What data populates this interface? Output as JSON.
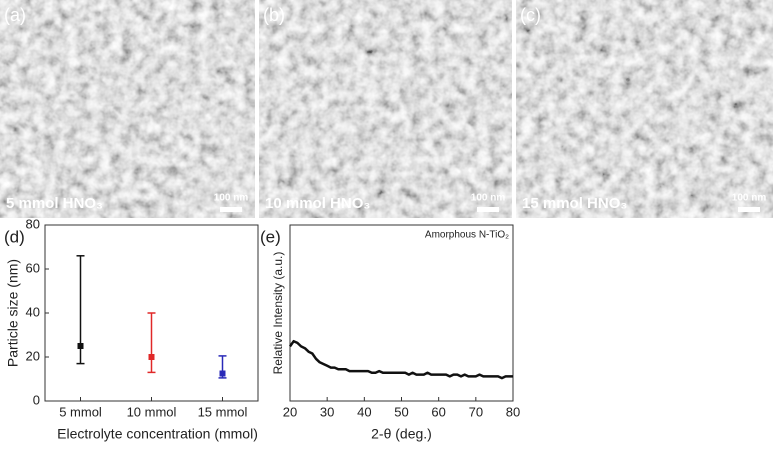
{
  "panels": [
    {
      "label": "(a)",
      "caption": "5 mmol HNO₃",
      "scale": "100 nm"
    },
    {
      "label": "(b)",
      "caption": "10 mmol HNO₃",
      "scale": "100 nm"
    },
    {
      "label": "(c)",
      "caption": "15 mmol HNO₃",
      "scale": "100 nm"
    }
  ],
  "chart_data": [
    {
      "type": "errorbar",
      "label": "(d)",
      "x_label": "Electrolyte concentration (mmol)",
      "y_label": "Particle size (nm)",
      "categories": [
        "5 mmol",
        "10 mmol",
        "15 mmol"
      ],
      "values": [
        25,
        20,
        12.5
      ],
      "min": [
        17,
        13,
        10.5
      ],
      "max": [
        66,
        40,
        20.5
      ],
      "colors": [
        "#111111",
        "#e02828",
        "#2a2ab8"
      ],
      "ylim": [
        0,
        80
      ],
      "yticks": [
        0,
        20,
        40,
        60,
        80
      ]
    },
    {
      "type": "line",
      "label": "(e)",
      "x_label": "2-θ (deg.)",
      "y_label": "Relative Intensity (a.u.)",
      "annotation": "Amorphous N-TiO₂",
      "color": "#111111",
      "xlim": [
        20,
        80
      ],
      "xticks": [
        20,
        30,
        40,
        50,
        60,
        70,
        80
      ],
      "ylim": [
        0,
        100
      ],
      "x": [
        20,
        21,
        22,
        23,
        24,
        25,
        26,
        27,
        28,
        29,
        30,
        31,
        32,
        33,
        34,
        35,
        36,
        37,
        38,
        39,
        40,
        41,
        42,
        43,
        44,
        45,
        46,
        47,
        48,
        49,
        50,
        51,
        52,
        53,
        54,
        55,
        56,
        57,
        58,
        59,
        60,
        61,
        62,
        63,
        64,
        65,
        66,
        67,
        68,
        69,
        70,
        71,
        72,
        73,
        74,
        75,
        76,
        77,
        78,
        79,
        80
      ],
      "values": [
        31,
        34,
        33,
        31,
        30,
        28,
        27,
        24,
        22,
        21,
        20,
        19,
        19,
        18,
        18,
        18,
        17,
        17,
        17,
        17,
        17,
        17,
        16,
        16,
        17,
        16,
        16,
        16,
        16,
        16,
        16,
        16,
        15,
        16,
        15,
        15,
        15,
        16,
        15,
        15,
        15,
        15,
        15,
        14,
        15,
        15,
        14,
        15,
        14,
        14,
        14,
        15,
        14,
        14,
        14,
        14,
        14,
        13,
        14,
        14,
        14
      ]
    }
  ]
}
